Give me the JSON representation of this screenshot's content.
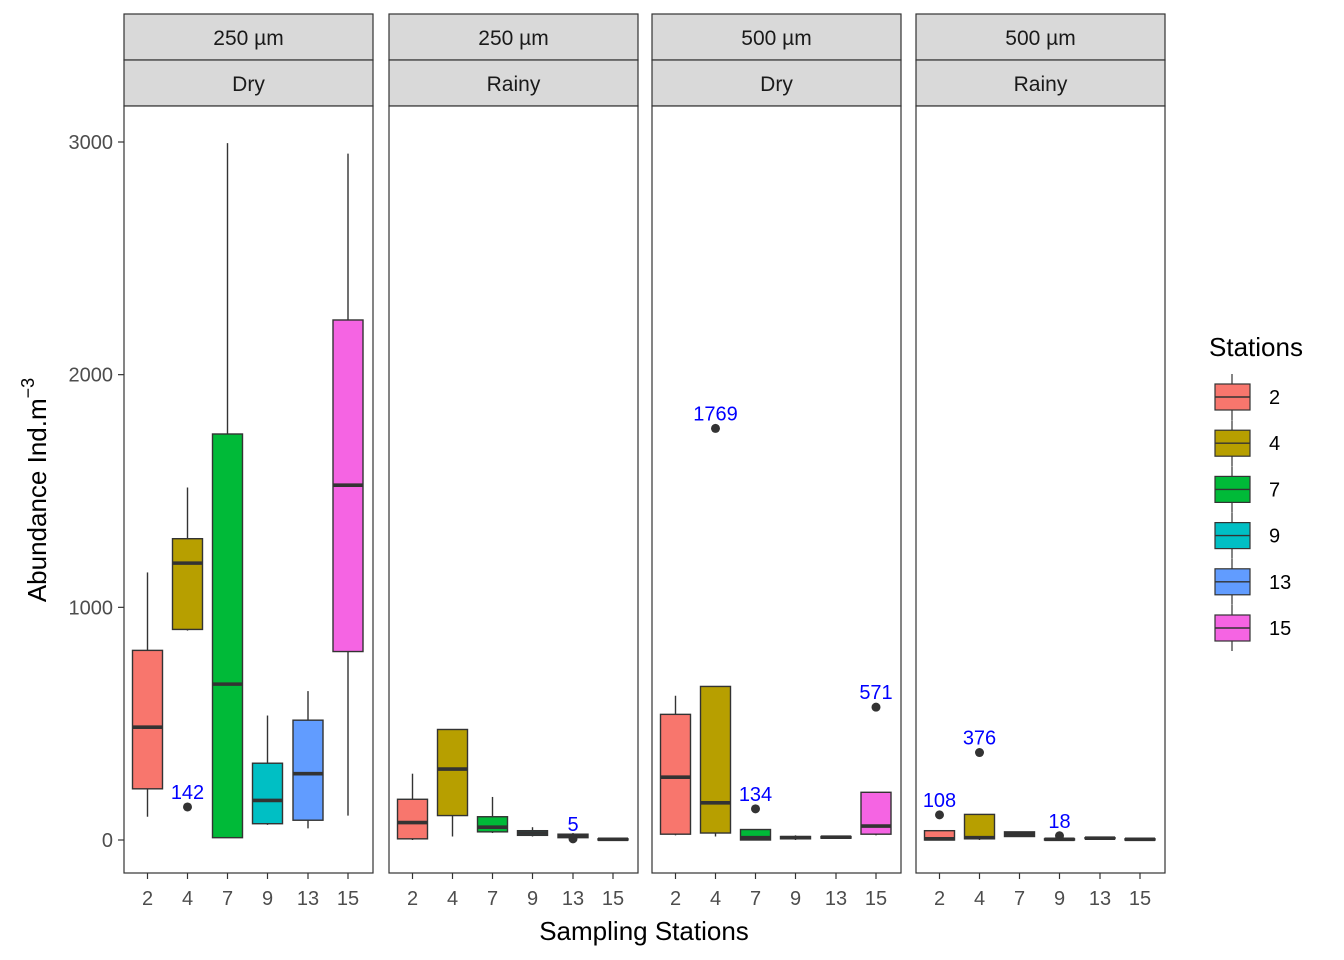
{
  "chart_data": {
    "type": "boxplot",
    "xlabel": "Sampling Stations",
    "ylabel": "Abundance Ind.m",
    "ylabel_superscript": "−3",
    "ylim": [
      -150,
      3200
    ],
    "yticks": [
      0,
      1000,
      2000,
      3000
    ],
    "categories": [
      "2",
      "4",
      "7",
      "9",
      "13",
      "15"
    ],
    "grid": false,
    "legend": {
      "title": "Stations",
      "position": "right",
      "entries": [
        {
          "label": "2",
          "color": "#F8766D"
        },
        {
          "label": "4",
          "color": "#B79F00"
        },
        {
          "label": "7",
          "color": "#00BA38"
        },
        {
          "label": "9",
          "color": "#00BFC4"
        },
        {
          "label": "13",
          "color": "#619CFF"
        },
        {
          "label": "15",
          "color": "#F564E3"
        }
      ]
    },
    "annotation_color": "#0000FF",
    "panels": [
      {
        "mesh": "250 µm",
        "season": "Dry",
        "boxes": [
          {
            "station": "2",
            "wlo": 100,
            "q1": 220,
            "median": 485,
            "q3": 815,
            "whi": 1150
          },
          {
            "station": "4",
            "wlo": 900,
            "q1": 905,
            "median": 1190,
            "q3": 1295,
            "whi": 1515,
            "outliers": [
              {
                "value": 142,
                "label": "142"
              }
            ]
          },
          {
            "station": "7",
            "wlo": 10,
            "q1": 10,
            "median": 670,
            "q3": 1745,
            "whi": 2995
          },
          {
            "station": "9",
            "wlo": 65,
            "q1": 70,
            "median": 170,
            "q3": 330,
            "whi": 535
          },
          {
            "station": "13",
            "wlo": 50,
            "q1": 85,
            "median": 285,
            "q3": 515,
            "whi": 640
          },
          {
            "station": "15",
            "wlo": 105,
            "q1": 810,
            "median": 1525,
            "q3": 2235,
            "whi": 2950
          }
        ]
      },
      {
        "mesh": "250 µm",
        "season": "Rainy",
        "boxes": [
          {
            "station": "2",
            "wlo": 0,
            "q1": 5,
            "median": 75,
            "q3": 175,
            "whi": 285
          },
          {
            "station": "4",
            "wlo": 15,
            "q1": 105,
            "median": 305,
            "q3": 475,
            "whi": 475
          },
          {
            "station": "7",
            "wlo": 30,
            "q1": 35,
            "median": 55,
            "q3": 100,
            "whi": 185
          },
          {
            "station": "9",
            "wlo": 15,
            "q1": 20,
            "median": 30,
            "q3": 40,
            "whi": 55
          },
          {
            "station": "13",
            "wlo": 5,
            "q1": 10,
            "median": 20,
            "q3": 25,
            "whi": 30,
            "outliers": [
              {
                "value": 5,
                "label": "5"
              }
            ]
          },
          {
            "station": "15",
            "wlo": 0,
            "q1": 0,
            "median": 3,
            "q3": 5,
            "whi": 5
          }
        ]
      },
      {
        "mesh": "500 µm",
        "season": "Dry",
        "boxes": [
          {
            "station": "2",
            "wlo": 20,
            "q1": 25,
            "median": 270,
            "q3": 540,
            "whi": 620
          },
          {
            "station": "4",
            "wlo": 15,
            "q1": 30,
            "median": 160,
            "q3": 660,
            "whi": 660,
            "outliers": [
              {
                "value": 1769,
                "label": "1769"
              }
            ]
          },
          {
            "station": "7",
            "wlo": 0,
            "q1": 0,
            "median": 10,
            "q3": 45,
            "whi": 45,
            "outliers": [
              {
                "value": 134,
                "label": "134"
              }
            ]
          },
          {
            "station": "9",
            "wlo": 0,
            "q1": 5,
            "median": 10,
            "q3": 15,
            "whi": 20
          },
          {
            "station": "13",
            "wlo": 5,
            "q1": 8,
            "median": 12,
            "q3": 15,
            "whi": 18
          },
          {
            "station": "15",
            "wlo": 20,
            "q1": 25,
            "median": 60,
            "q3": 205,
            "whi": 205,
            "outliers": [
              {
                "value": 571,
                "label": "571"
              }
            ]
          }
        ]
      },
      {
        "mesh": "500 µm",
        "season": "Rainy",
        "boxes": [
          {
            "station": "2",
            "wlo": 0,
            "q1": 0,
            "median": 5,
            "q3": 40,
            "whi": 40,
            "outliers": [
              {
                "value": 108,
                "label": "108"
              }
            ]
          },
          {
            "station": "4",
            "wlo": 0,
            "q1": 5,
            "median": 10,
            "q3": 110,
            "whi": 110,
            "outliers": [
              {
                "value": 376,
                "label": "376"
              }
            ]
          },
          {
            "station": "7",
            "wlo": 15,
            "q1": 15,
            "median": 25,
            "q3": 35,
            "whi": 35
          },
          {
            "station": "9",
            "wlo": 0,
            "q1": 0,
            "median": 3,
            "q3": 5,
            "whi": 5,
            "outliers": [
              {
                "value": 18,
                "label": "18"
              }
            ]
          },
          {
            "station": "13",
            "wlo": 5,
            "q1": 6,
            "median": 8,
            "q3": 10,
            "whi": 12
          },
          {
            "station": "15",
            "wlo": 0,
            "q1": 0,
            "median": 3,
            "q3": 5,
            "whi": 5
          }
        ]
      }
    ]
  }
}
